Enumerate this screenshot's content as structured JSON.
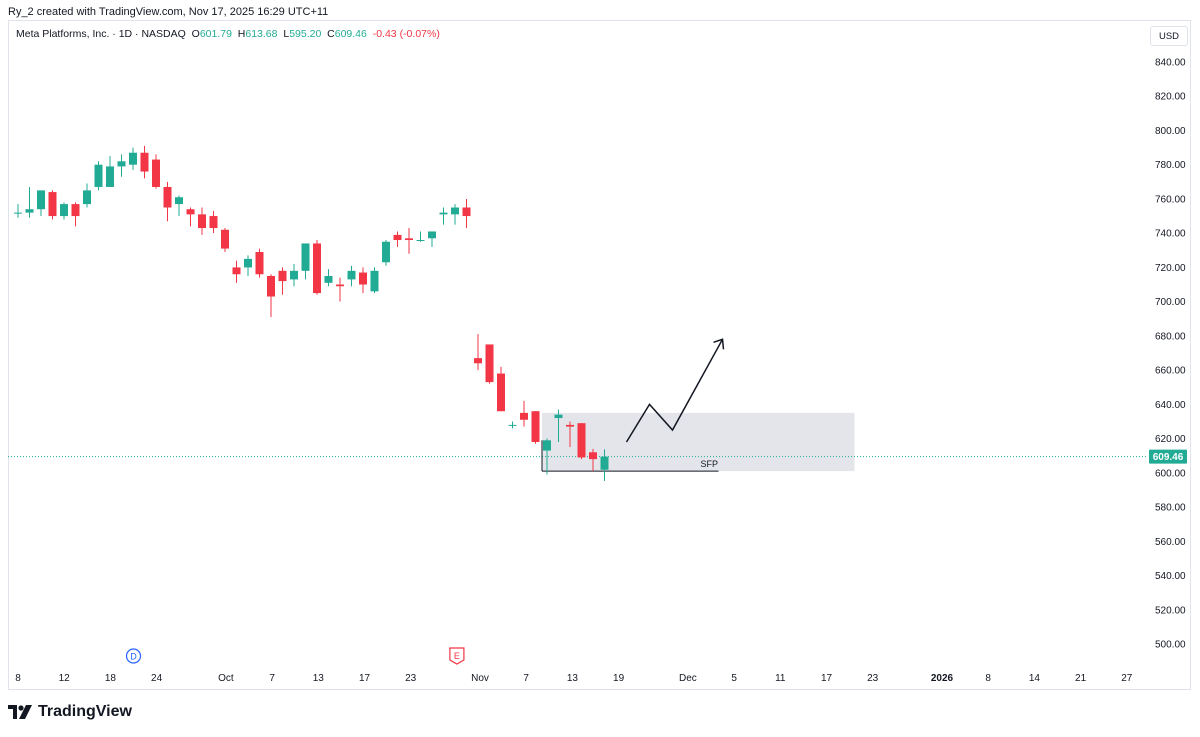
{
  "header": {
    "author_line": "Ry_2 created with TradingView.com, Nov 17, 2025 16:29 UTC+11"
  },
  "legend": {
    "symbol": "Meta Platforms, Inc. · 1D · NASDAQ",
    "o_label": "O",
    "o_value": "601.79",
    "h_label": "H",
    "h_value": "613.68",
    "l_label": "L",
    "l_value": "595.20",
    "c_label": "C",
    "c_value": "609.46",
    "change": "-0.43 (-0.07%)"
  },
  "currency": "USD",
  "price_tag": "609.46",
  "footer": {
    "brand": "TradingView"
  },
  "colors": {
    "up": "#22ab94",
    "down": "#f23645",
    "zone": "#d1d4dc",
    "axis_text": "#131722"
  },
  "chart_data": {
    "type": "candlestick",
    "y_axis": {
      "min": 490,
      "max": 850,
      "ticks": [
        "840.00",
        "820.00",
        "800.00",
        "780.00",
        "760.00",
        "740.00",
        "720.00",
        "700.00",
        "680.00",
        "660.00",
        "640.00",
        "620.00",
        "600.00",
        "580.00",
        "560.00",
        "540.00",
        "520.00",
        "500.00"
      ]
    },
    "x_axis": {
      "labels": [
        {
          "label": "8",
          "idx": 0
        },
        {
          "label": "12",
          "idx": 2
        },
        {
          "label": "18",
          "idx": 4
        },
        {
          "label": "24",
          "idx": 6
        },
        {
          "label": "Oct",
          "idx": 9
        },
        {
          "label": "7",
          "idx": 11
        },
        {
          "label": "13",
          "idx": 13
        },
        {
          "label": "17",
          "idx": 15
        },
        {
          "label": "23",
          "idx": 17
        },
        {
          "label": "Nov",
          "idx": 20
        },
        {
          "label": "7",
          "idx": 22
        },
        {
          "label": "13",
          "idx": 24
        },
        {
          "label": "19",
          "idx": 26
        },
        {
          "label": "Dec",
          "idx": 29
        },
        {
          "label": "5",
          "idx": 31
        },
        {
          "label": "11",
          "idx": 33
        },
        {
          "label": "17",
          "idx": 35
        },
        {
          "label": "23",
          "idx": 37
        },
        {
          "label": "2026",
          "idx": 40
        },
        {
          "label": "8",
          "idx": 42
        },
        {
          "label": "14",
          "idx": 44
        },
        {
          "label": "21",
          "idx": 46
        },
        {
          "label": "27",
          "idx": 48
        }
      ]
    },
    "candles": [
      {
        "o": 752,
        "h": 757,
        "l": 749,
        "c": 752
      },
      {
        "o": 752,
        "h": 767,
        "l": 749,
        "c": 754
      },
      {
        "o": 754,
        "h": 764,
        "l": 750,
        "c": 765
      },
      {
        "o": 764,
        "h": 765,
        "l": 748,
        "c": 750
      },
      {
        "o": 750,
        "h": 758,
        "l": 748,
        "c": 757
      },
      {
        "o": 757,
        "h": 758,
        "l": 744,
        "c": 750
      },
      {
        "o": 757,
        "h": 769,
        "l": 755,
        "c": 765
      },
      {
        "o": 767,
        "h": 782,
        "l": 765,
        "c": 780
      },
      {
        "o": 767,
        "h": 785,
        "l": 767,
        "c": 779
      },
      {
        "o": 779,
        "h": 786,
        "l": 773,
        "c": 782
      },
      {
        "o": 780,
        "h": 790,
        "l": 777,
        "c": 787
      },
      {
        "o": 787,
        "h": 791,
        "l": 772,
        "c": 776
      },
      {
        "o": 783,
        "h": 786,
        "l": 766,
        "c": 767
      },
      {
        "o": 767,
        "h": 770,
        "l": 747,
        "c": 755
      },
      {
        "o": 757,
        "h": 762,
        "l": 750,
        "c": 761
      },
      {
        "o": 754,
        "h": 755,
        "l": 744,
        "c": 751
      },
      {
        "o": 751,
        "h": 755,
        "l": 739,
        "c": 743
      },
      {
        "o": 750,
        "h": 753,
        "l": 740,
        "c": 743
      },
      {
        "o": 742,
        "h": 743,
        "l": 729,
        "c": 731
      },
      {
        "o": 720,
        "h": 724,
        "l": 711,
        "c": 716
      },
      {
        "o": 720,
        "h": 727,
        "l": 715,
        "c": 725
      },
      {
        "o": 729,
        "h": 731,
        "l": 714,
        "c": 716
      },
      {
        "o": 715,
        "h": 716,
        "l": 691,
        "c": 703
      },
      {
        "o": 718,
        "h": 720,
        "l": 704,
        "c": 712
      },
      {
        "o": 713,
        "h": 722,
        "l": 709,
        "c": 718
      },
      {
        "o": 718,
        "h": 733,
        "l": 713,
        "c": 734
      },
      {
        "o": 734,
        "h": 736,
        "l": 704,
        "c": 705
      },
      {
        "o": 711,
        "h": 719,
        "l": 709,
        "c": 715
      },
      {
        "o": 710,
        "h": 714,
        "l": 700,
        "c": 709
      },
      {
        "o": 713,
        "h": 721,
        "l": 709,
        "c": 718
      },
      {
        "o": 717,
        "h": 720,
        "l": 705,
        "c": 710
      },
      {
        "o": 706,
        "h": 720,
        "l": 705,
        "c": 718
      },
      {
        "o": 723,
        "h": 736,
        "l": 721,
        "c": 735
      },
      {
        "o": 739,
        "h": 741,
        "l": 732,
        "c": 736
      },
      {
        "o": 737,
        "h": 743,
        "l": 728,
        "c": 736
      },
      {
        "o": 736,
        "h": 741,
        "l": 735,
        "c": 736
      },
      {
        "o": 737,
        "h": 741,
        "l": 732,
        "c": 741
      },
      {
        "o": 751,
        "h": 755,
        "l": 745,
        "c": 752
      },
      {
        "o": 751,
        "h": 757,
        "l": 745,
        "c": 755
      },
      {
        "o": 755,
        "h": 760,
        "l": 743,
        "c": 750
      },
      {
        "o": 667,
        "h": 681,
        "l": 660,
        "c": 664
      },
      {
        "o": 675,
        "h": 675,
        "l": 652,
        "c": 653
      },
      {
        "o": 658,
        "h": 662,
        "l": 636,
        "c": 636
      },
      {
        "o": 628,
        "h": 630,
        "l": 626,
        "c": 628
      },
      {
        "o": 635,
        "h": 642,
        "l": 627,
        "c": 631
      },
      {
        "o": 636,
        "h": 636,
        "l": 617,
        "c": 618
      },
      {
        "o": 613,
        "h": 620,
        "l": 599,
        "c": 619
      },
      {
        "o": 632,
        "h": 637,
        "l": 618,
        "c": 634
      },
      {
        "o": 628,
        "h": 630,
        "l": 615,
        "c": 627
      },
      {
        "o": 629,
        "h": 629,
        "l": 608,
        "c": 609
      },
      {
        "o": 612,
        "h": 614,
        "l": 601,
        "c": 608
      },
      {
        "o": 601.79,
        "h": 613.68,
        "l": 595.2,
        "c": 609.46
      }
    ],
    "annotations": {
      "zone": {
        "y_top": 635,
        "y_bottom": 601
      },
      "sfp_label": "SFP",
      "sfp_level": 601,
      "projection": [
        618,
        640,
        625,
        678
      ],
      "event_markers": [
        {
          "label": "D",
          "idx": 5
        },
        {
          "label": "E",
          "idx": 19
        }
      ]
    }
  }
}
